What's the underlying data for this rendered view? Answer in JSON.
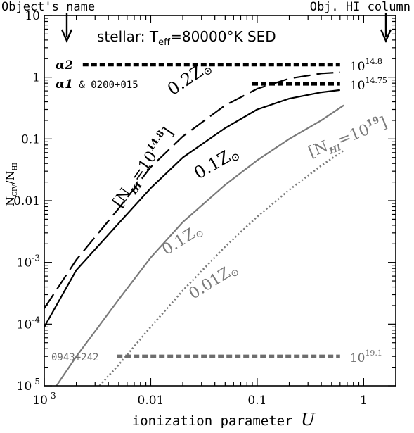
{
  "chart_data": {
    "type": "line",
    "xlabel": "ionization parameter",
    "xlabel_symbol": "U",
    "ylabel_main": "N",
    "ylabel_sub1": "CIV",
    "ylabel_mid": "/N",
    "ylabel_sub2": "HI",
    "xscale": "log",
    "yscale": "log",
    "xlim": [
      0.001,
      2
    ],
    "ylim": [
      1e-05,
      10
    ],
    "x_ticks": [
      {
        "value": 0.001,
        "base": "10",
        "exp": "-3"
      },
      {
        "value": 0.01,
        "label": "0.01"
      },
      {
        "value": 0.1,
        "label": "0.1"
      },
      {
        "value": 1,
        "label": "1"
      }
    ],
    "y_ticks": [
      {
        "value": 1e-05,
        "base": "10",
        "exp": "-5"
      },
      {
        "value": 0.0001,
        "base": "10",
        "exp": "-4"
      },
      {
        "value": 0.001,
        "base": "10",
        "exp": "-3"
      },
      {
        "value": 0.01,
        "label": "0.01"
      },
      {
        "value": 0.1,
        "label": "0.1"
      },
      {
        "value": 1,
        "label": "1"
      },
      {
        "value": 10,
        "label": "10"
      }
    ],
    "grid": false,
    "corner_labels": {
      "left": "Object's name",
      "right": "Obj. HI column"
    },
    "sed_text": {
      "prefix": "stellar:  T",
      "sub": "eff",
      "suffix": "=80000°K  SED"
    },
    "series": [
      {
        "style": "long-dash",
        "color": "#000000",
        "x": [
          0.001,
          0.002,
          0.005,
          0.01,
          0.02,
          0.05,
          0.1,
          0.2,
          0.4,
          0.6
        ],
        "y": [
          0.00018,
          0.0011,
          0.0075,
          0.035,
          0.11,
          0.35,
          0.65,
          0.95,
          1.15,
          1.2
        ]
      },
      {
        "style": "solid",
        "color": "#000000",
        "x": [
          0.001,
          0.002,
          0.005,
          0.01,
          0.02,
          0.05,
          0.1,
          0.2,
          0.4,
          0.6
        ],
        "y": [
          9e-05,
          0.00075,
          0.0043,
          0.016,
          0.05,
          0.15,
          0.3,
          0.45,
          0.57,
          0.62
        ]
      },
      {
        "style": "solid",
        "color": "#7a7a7a",
        "x": [
          0.0013,
          0.002,
          0.005,
          0.01,
          0.02,
          0.05,
          0.1,
          0.2,
          0.4,
          0.65
        ],
        "y": [
          1e-05,
          3e-05,
          0.00025,
          0.0012,
          0.0045,
          0.018,
          0.045,
          0.1,
          0.2,
          0.35
        ]
      },
      {
        "style": "dotted",
        "color": "#7a7a7a",
        "x": [
          0.0033,
          0.005,
          0.01,
          0.02,
          0.05,
          0.1,
          0.2,
          0.4,
          0.65
        ],
        "y": [
          1e-05,
          2.2e-05,
          9e-05,
          0.00035,
          0.0018,
          0.0055,
          0.015,
          0.037,
          0.065
        ]
      }
    ],
    "curve_labels": [
      {
        "text": "0.2Z",
        "suffix": "⊙",
        "color": "#000000",
        "x": 0.016,
        "y": 0.5,
        "rot": -34,
        "size": 24
      },
      {
        "text": "0.1Z",
        "suffix": "⊙",
        "color": "#000000",
        "x": 0.028,
        "y": 0.022,
        "rot": -30,
        "size": 24
      },
      {
        "text": "0.1Z",
        "suffix": "⊙",
        "color": "#7a7a7a",
        "x": 0.014,
        "y": 0.0013,
        "rot": -32,
        "size": 22
      },
      {
        "text": "0.01Z",
        "suffix": "⊙",
        "color": "#7a7a7a",
        "x": 0.025,
        "y": 0.00025,
        "rot": -32,
        "size": 22
      }
    ],
    "column_labels": [
      {
        "base": "[N",
        "sub": "HI",
        "eq": "=10",
        "exp": "14.8",
        "close": "]",
        "color": "#000000",
        "x": 0.0052,
        "y": 0.0075,
        "rot": -55,
        "size": 22
      },
      {
        "base": "[N",
        "sub": "HI",
        "eq": "=10",
        "exp": "19",
        "close": "]",
        "color": "#7a7a7a",
        "x": 0.32,
        "y": 0.05,
        "rot": -22,
        "size": 22
      }
    ],
    "observations": [
      {
        "name_parts": [
          {
            "text": "α2",
            "style": "italic-bold"
          }
        ],
        "x_from": 0.0023,
        "x_to": 0.6,
        "y": 1.6,
        "color": "#000000",
        "col_base": "10",
        "col_exp": "14.8"
      },
      {
        "name_parts": [
          {
            "text": "α1",
            "style": "italic-bold"
          },
          {
            "text": " & 0200+015",
            "style": "mono"
          }
        ],
        "x_from": 0.09,
        "x_to": 0.6,
        "y": 0.78,
        "color": "#000000",
        "col_base": "10",
        "col_exp": "14.75"
      },
      {
        "name_parts": [
          {
            "text": "0943+242",
            "style": "mono"
          }
        ],
        "x_from": 0.0048,
        "x_to": 0.6,
        "y": 3e-05,
        "color": "#6e6e6e",
        "col_base": "10",
        "col_exp": "19.1"
      }
    ]
  }
}
